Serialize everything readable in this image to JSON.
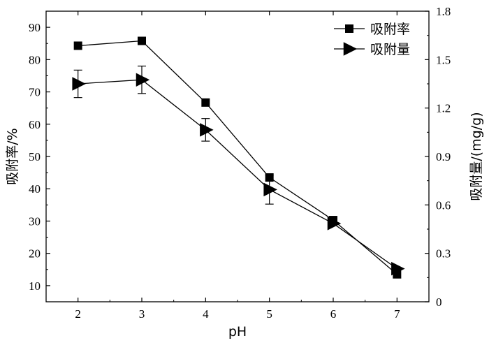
{
  "chart_data": {
    "type": "line",
    "x": [
      2,
      3,
      4,
      5,
      6,
      7
    ],
    "xlabel": "pH",
    "ylabel_left": "吸附率/%",
    "ylabel_right": "吸附量/(mg/g)",
    "xlim": [
      1.5,
      7.5
    ],
    "ylim_left": [
      5,
      95
    ],
    "ylim_right": [
      0,
      1.8
    ],
    "x_ticks": [
      2,
      3,
      4,
      5,
      6,
      7
    ],
    "y_left_ticks": [
      10,
      20,
      30,
      40,
      50,
      60,
      70,
      80,
      90
    ],
    "y_right_ticks": [
      0,
      0.3,
      0.6,
      0.9,
      1.2,
      1.5,
      1.8
    ],
    "y_right_tick_labels": [
      "0",
      "0.3",
      "0.6",
      "0.9",
      "1.2",
      "1.5",
      "1.8"
    ],
    "grid": false,
    "legend_position": "top-right",
    "series": [
      {
        "name": "吸附率",
        "axis": "left",
        "marker": "square",
        "values": [
          84.3,
          85.8,
          66.7,
          43.5,
          30.3,
          13.5
        ]
      },
      {
        "name": "吸附量",
        "axis": "right",
        "marker": "triangle-right",
        "values": [
          1.35,
          1.375,
          1.065,
          0.695,
          0.485,
          0.205
        ],
        "error": [
          0.085,
          0.085,
          0.07,
          0.09,
          0.0,
          0.0
        ]
      }
    ]
  }
}
